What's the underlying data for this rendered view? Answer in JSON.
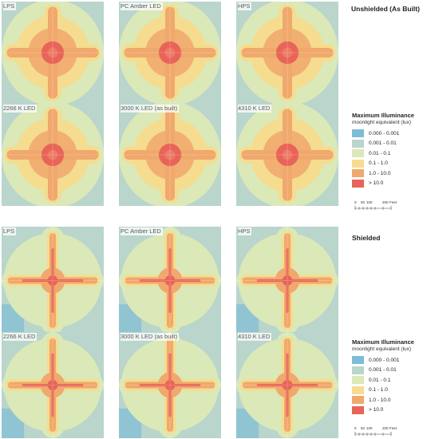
{
  "sections": [
    {
      "title": "Unshielded (As Built)",
      "panels": [
        {
          "label": "LPS"
        },
        {
          "label": "PC Amber LED"
        },
        {
          "label": "HPS"
        },
        {
          "label": "2266 K LED"
        },
        {
          "label": "3000 K LED (as built)"
        },
        {
          "label": "4310 K LED"
        }
      ]
    },
    {
      "title": "Shielded",
      "panels": [
        {
          "label": "LPS"
        },
        {
          "label": "PC Amber LED"
        },
        {
          "label": "HPS"
        },
        {
          "label": "2266 K LED"
        },
        {
          "label": "3000 K LED (as built)"
        },
        {
          "label": "4310 K LED"
        }
      ]
    }
  ],
  "legend": {
    "title": "Maximum Illuminance",
    "subtitle": "moonlight equivalent (lux)",
    "items": [
      {
        "range": "0.000 - 0.001",
        "color": "#7fbcd6"
      },
      {
        "range": "0.001 - 0.01",
        "color": "#b9d5cc"
      },
      {
        "range": "0.01 - 0.1",
        "color": "#dbe8b7"
      },
      {
        "range": "0.1 - 1.0",
        "color": "#f6dc8e"
      },
      {
        "range": "1.0 - 10.0",
        "color": "#f0a86c"
      },
      {
        "range": "> 10.0",
        "color": "#e86458"
      }
    ]
  },
  "scalebar": {
    "ticks": [
      "0",
      "50",
      "100",
      "200"
    ],
    "unit": "Feet"
  },
  "colors": {
    "map_background": "#c4d9cf",
    "water": "#7fbcd6"
  }
}
